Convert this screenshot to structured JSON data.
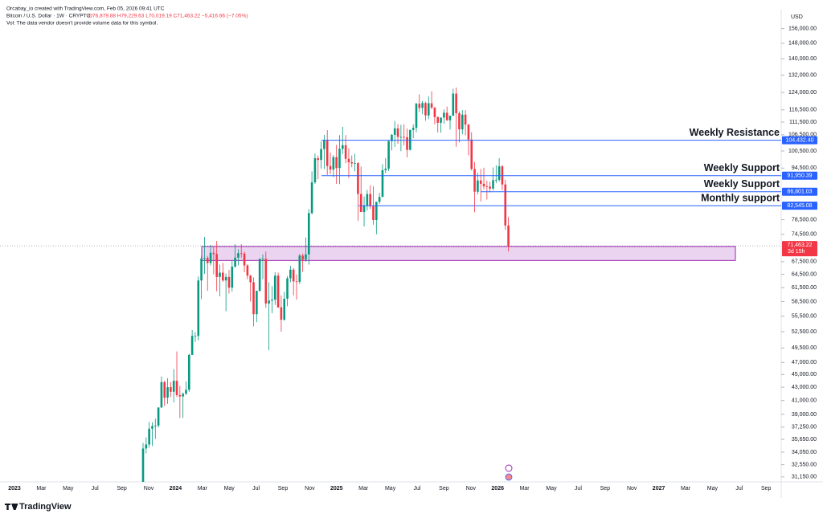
{
  "header": {
    "credit": "Orcabay_io created with TradingView.com, Feb 05, 2026 09:41 UTC",
    "symbol": "Bitcoin / U.S. Dollar · 1W · CRYPTO",
    "ohlc": "O76,879.88 H79,229.63 L70,019.19 C71,463.22 −5,416.66 (−7.05%)",
    "volume_note": "Vol: The data vendor doesn't provide volume data for this symbol.",
    "currency": "USD",
    "logo": "TradingView"
  },
  "chart_data": {
    "type": "candlestick",
    "log_scale": true,
    "up_color": "#089981",
    "down_color": "#f23645",
    "ylim": [
      30600,
      167000
    ],
    "yticks": [
      {
        "value": 156000,
        "label": "156,000.00"
      },
      {
        "value": 148000,
        "label": "148,000.00"
      },
      {
        "value": 140000,
        "label": "140,000.00"
      },
      {
        "value": 132000,
        "label": "132,000.00"
      },
      {
        "value": 124000,
        "label": "124,000.00"
      },
      {
        "value": 116500,
        "label": "116,500.00"
      },
      {
        "value": 111500,
        "label": "111,500.00"
      },
      {
        "value": 106500,
        "label": "106,500.00"
      },
      {
        "value": 100500,
        "label": "100,500.00"
      },
      {
        "value": 94500,
        "label": "94,500.00"
      },
      {
        "value": 78500,
        "label": "78,500.00"
      },
      {
        "value": 74500,
        "label": "74,500.00"
      },
      {
        "value": 67500,
        "label": "67,500.00"
      },
      {
        "value": 64500,
        "label": "64,500.00"
      },
      {
        "value": 61500,
        "label": "61,500.00"
      },
      {
        "value": 58500,
        "label": "58,500.00"
      },
      {
        "value": 55500,
        "label": "55,500.00"
      },
      {
        "value": 52500,
        "label": "52,500.00"
      },
      {
        "value": 49500,
        "label": "49,500.00"
      },
      {
        "value": 47000,
        "label": "47,000.00"
      },
      {
        "value": 45000,
        "label": "45,000.00"
      },
      {
        "value": 43000,
        "label": "43,000.00"
      },
      {
        "value": 41000,
        "label": "41,000.00"
      },
      {
        "value": 39000,
        "label": "39,000.00"
      },
      {
        "value": 37250,
        "label": "37,250.00"
      },
      {
        "value": 35650,
        "label": "35,650.00"
      },
      {
        "value": 34050,
        "label": "34,050.00"
      },
      {
        "value": 32550,
        "label": "32,550.00"
      },
      {
        "value": 31150,
        "label": "31,150.00"
      }
    ],
    "x_labels": [
      "2023",
      "Mar",
      "May",
      "Jul",
      "Sep",
      "Nov",
      "2024",
      "Mar",
      "May",
      "Jul",
      "Sep",
      "Nov",
      "2025",
      "Mar",
      "May",
      "Jul",
      "Sep",
      "Nov",
      "2026",
      "Mar",
      "May",
      "Jul",
      "Sep",
      "Nov",
      "2027",
      "Mar",
      "May",
      "Jul",
      "Sep"
    ],
    "candles": [
      [
        29900,
        35200,
        29800,
        34500
      ],
      [
        34500,
        35900,
        33900,
        35000
      ],
      [
        35000,
        37950,
        34600,
        37050
      ],
      [
        37050,
        37900,
        34800,
        37400
      ],
      [
        37400,
        38400,
        35700,
        37450
      ],
      [
        37450,
        40000,
        37200,
        39970
      ],
      [
        39970,
        44700,
        39950,
        43800
      ],
      [
        43800,
        44000,
        40200,
        41400
      ],
      [
        41400,
        44400,
        40500,
        43000
      ],
      [
        43000,
        43800,
        41500,
        42300
      ],
      [
        42300,
        45900,
        40700,
        44000
      ],
      [
        44000,
        48900,
        41500,
        41800
      ],
      [
        41800,
        43200,
        38500,
        41600
      ],
      [
        41600,
        42200,
        38500,
        42000
      ],
      [
        42000,
        43900,
        41800,
        42600
      ],
      [
        42600,
        48500,
        42300,
        48300
      ],
      [
        48300,
        52800,
        48300,
        51700
      ],
      [
        51700,
        52400,
        50600,
        51700
      ],
      [
        51700,
        64000,
        50900,
        63100
      ],
      [
        63100,
        69000,
        59000,
        68300
      ],
      [
        68300,
        73800,
        64600,
        68400
      ],
      [
        68400,
        68900,
        60800,
        67200
      ],
      [
        67200,
        71700,
        66600,
        69700
      ],
      [
        69700,
        71300,
        64500,
        69400
      ],
      [
        69400,
        72700,
        60700,
        63900
      ],
      [
        63900,
        66800,
        59600,
        64900
      ],
      [
        64900,
        67200,
        62800,
        63100
      ],
      [
        63100,
        64700,
        56500,
        63900
      ],
      [
        63900,
        65500,
        60200,
        61500
      ],
      [
        61500,
        67700,
        60600,
        66300
      ],
      [
        66300,
        71900,
        66100,
        68500
      ],
      [
        68500,
        70600,
        66600,
        69600
      ],
      [
        69600,
        71900,
        68500,
        69500
      ],
      [
        69500,
        70000,
        65000,
        66600
      ],
      [
        66600,
        66900,
        63400,
        64200
      ],
      [
        64200,
        64400,
        58500,
        62700
      ],
      [
        62700,
        63800,
        53500,
        55900
      ],
      [
        55900,
        59500,
        54300,
        60800
      ],
      [
        60800,
        68300,
        60600,
        68200
      ],
      [
        68200,
        69300,
        63400,
        68200
      ],
      [
        68200,
        70000,
        57200,
        58100
      ],
      [
        58100,
        62700,
        49100,
        58700
      ],
      [
        58700,
        61800,
        56100,
        58900
      ],
      [
        58900,
        65000,
        57800,
        64200
      ],
      [
        64200,
        64900,
        57200,
        57300
      ],
      [
        57300,
        59800,
        52500,
        54800
      ],
      [
        54800,
        60600,
        54600,
        59100
      ],
      [
        59100,
        64100,
        57500,
        63600
      ],
      [
        63600,
        66500,
        62700,
        65600
      ],
      [
        65600,
        66000,
        59800,
        62900
      ],
      [
        62900,
        64500,
        58900,
        62800
      ],
      [
        62800,
        69400,
        62300,
        69000
      ],
      [
        69000,
        69500,
        65100,
        68000
      ],
      [
        68000,
        73600,
        67500,
        69300
      ],
      [
        69300,
        81500,
        66800,
        80400
      ],
      [
        80400,
        93400,
        80000,
        89800
      ],
      [
        89800,
        99600,
        89300,
        97900
      ],
      [
        97900,
        98900,
        90800,
        97300
      ],
      [
        97300,
        104000,
        94300,
        101200
      ],
      [
        101200,
        106500,
        94200,
        104400
      ],
      [
        104400,
        108300,
        92200,
        95200
      ],
      [
        95200,
        99900,
        92500,
        94000
      ],
      [
        94000,
        99000,
        91500,
        98300
      ],
      [
        98300,
        102700,
        89300,
        94500
      ],
      [
        94500,
        106400,
        89200,
        101300
      ],
      [
        101300,
        109600,
        99400,
        102600
      ],
      [
        102600,
        106400,
        96200,
        97700
      ],
      [
        97700,
        101500,
        91200,
        96500
      ],
      [
        96500,
        98900,
        94800,
        96100
      ],
      [
        96100,
        99500,
        93400,
        96200
      ],
      [
        96200,
        96500,
        78200,
        86100
      ],
      [
        86100,
        95000,
        80700,
        80700
      ],
      [
        80700,
        85300,
        76600,
        82600
      ],
      [
        82600,
        87400,
        81100,
        86100
      ],
      [
        86100,
        88800,
        81600,
        82400
      ],
      [
        82400,
        88500,
        77100,
        78400
      ],
      [
        78400,
        83600,
        74500,
        83700
      ],
      [
        83700,
        86500,
        83100,
        85200
      ],
      [
        85200,
        95800,
        85200,
        93800
      ],
      [
        93800,
        97900,
        92800,
        94300
      ],
      [
        94300,
        104300,
        93500,
        104100
      ],
      [
        104100,
        106800,
        100700,
        106500
      ],
      [
        106500,
        111900,
        102000,
        109000
      ],
      [
        109000,
        110700,
        103100,
        105700
      ],
      [
        105700,
        110400,
        100400,
        105700
      ],
      [
        105700,
        110600,
        102600,
        105600
      ],
      [
        105600,
        108900,
        98200,
        100900
      ],
      [
        100900,
        108500,
        100700,
        108400
      ],
      [
        108400,
        110600,
        105200,
        109200
      ],
      [
        109200,
        119500,
        107500,
        119100
      ],
      [
        119100,
        123200,
        115700,
        117300
      ],
      [
        117300,
        120200,
        114700,
        119400
      ],
      [
        119400,
        119900,
        112000,
        114200
      ],
      [
        114200,
        122300,
        112700,
        119300
      ],
      [
        119300,
        124500,
        116800,
        117400
      ],
      [
        117400,
        117700,
        110600,
        113500
      ],
      [
        113500,
        113800,
        107400,
        111200
      ],
      [
        111200,
        113300,
        107300,
        113300
      ],
      [
        113300,
        116700,
        110800,
        115300
      ],
      [
        115300,
        117900,
        112000,
        112200
      ],
      [
        112200,
        113200,
        108600,
        114100
      ],
      [
        114100,
        125700,
        113900,
        123500
      ],
      [
        123500,
        126200,
        102000,
        115100
      ],
      [
        115100,
        115900,
        103600,
        108600
      ],
      [
        108600,
        116400,
        106700,
        114500
      ],
      [
        114500,
        116400,
        106300,
        110500
      ],
      [
        110500,
        110700,
        98900,
        104700
      ],
      [
        104700,
        107500,
        93700,
        94200
      ],
      [
        94200,
        96600,
        80600,
        86800
      ],
      [
        86800,
        92900,
        86000,
        90400
      ],
      [
        90400,
        94200,
        83800,
        89300
      ],
      [
        89300,
        94600,
        87600,
        88500
      ],
      [
        88500,
        90300,
        84400,
        88400
      ],
      [
        88400,
        90000,
        86600,
        87800
      ],
      [
        87800,
        94700,
        87200,
        90500
      ],
      [
        90500,
        95400,
        89500,
        90600
      ],
      [
        90600,
        97900,
        90000,
        95100
      ],
      [
        95100,
        95500,
        87300,
        89100
      ],
      [
        89100,
        90600,
        75700,
        76880
      ],
      [
        76879.88,
        79229.63,
        70019.19,
        71463.22
      ]
    ],
    "levels": [
      {
        "value": 104432.4,
        "label": "104,432.40",
        "note": "Weekly Resistance"
      },
      {
        "value": 91950.39,
        "label": "91,950.39",
        "note": "Weekly Support"
      },
      {
        "value": 86801.03,
        "label": "86,801.03",
        "note": "Weekly Support"
      },
      {
        "value": 82545.08,
        "label": "82,545.08",
        "note": "Monthly support"
      }
    ],
    "level_color": "#2962ff",
    "zone": {
      "low": 67800,
      "high": 71300,
      "color": "#9c27b0"
    },
    "current": {
      "value": 71463.22,
      "label": "71,463.22",
      "countdown": "3d 15h"
    }
  }
}
